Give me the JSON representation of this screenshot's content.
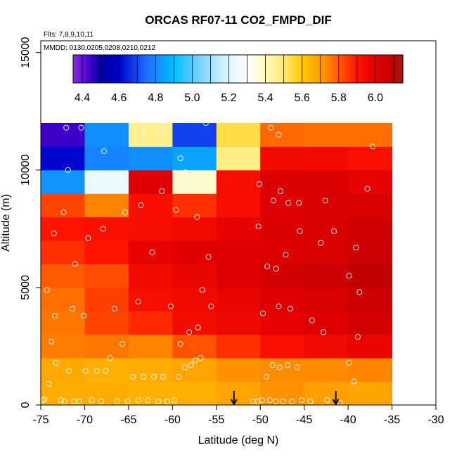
{
  "chart_data": {
    "type": "heatmap",
    "title": "ORCAS RF07-11 CO2_FMPD_DIF",
    "flights_note": "Flts: 7,8,9,10,11",
    "dates_note": "MMDD: 0130,0205,0208,0210,0212",
    "xlabel": "Latitude (deg N)",
    "ylabel": "Altitude (m)",
    "xlim": [
      -75,
      -30
    ],
    "ylim": [
      0,
      15500
    ],
    "x_ticks": [
      -75,
      -70,
      -65,
      -60,
      -55,
      -50,
      -45,
      -40,
      -35,
      -30
    ],
    "x_tick_labels": [
      "-75",
      "-70",
      "-65",
      "-60",
      "-55",
      "-50",
      "-45",
      "-40",
      "-35",
      "-30"
    ],
    "y_ticks": [
      0,
      5000,
      10000,
      15000
    ],
    "y_tick_labels": [
      "0",
      "5000",
      "10000",
      "15000"
    ],
    "colorbar": {
      "min": 4.35,
      "max": 6.15,
      "ticks": [
        4.4,
        4.6,
        4.8,
        5.0,
        5.2,
        5.4,
        5.6,
        5.8,
        6.0
      ],
      "tick_labels": [
        "4.4",
        "4.6",
        "4.8",
        "5.0",
        "5.2",
        "5.4",
        "5.6",
        "5.8",
        "6.0"
      ],
      "divisions": [
        4.35,
        4.4,
        4.5,
        4.6,
        4.7,
        4.8,
        4.9,
        5.0,
        5.1,
        5.2,
        5.3,
        5.4,
        5.5,
        5.6,
        5.7,
        5.8,
        5.9,
        6.0,
        6.1,
        6.15
      ]
    },
    "lat_bins": [
      -75,
      -70,
      -65,
      -60,
      -55,
      -50,
      -45,
      -40,
      -35
    ],
    "alt_bins": [
      0,
      1000,
      2000,
      3000,
      4000,
      5000,
      6000,
      7000,
      8000,
      9000,
      10000,
      11000,
      12000
    ],
    "cell_values_bottom_to_top": [
      [
        5.67,
        5.67,
        5.66,
        5.66,
        5.69,
        5.72,
        5.7,
        5.69
      ],
      [
        5.68,
        5.66,
        5.67,
        5.69,
        5.72,
        5.73,
        5.73,
        5.74
      ],
      [
        5.75,
        5.76,
        5.74,
        5.81,
        5.86,
        5.92,
        5.95,
        5.97
      ],
      [
        5.76,
        5.83,
        5.87,
        5.94,
        5.96,
        5.99,
        6.01,
        6.04
      ],
      [
        5.77,
        5.84,
        5.93,
        5.95,
        5.97,
        6.01,
        6.03,
        6.06
      ],
      [
        5.8,
        5.82,
        5.94,
        5.97,
        6.01,
        6.04,
        6.06,
        6.09
      ],
      [
        5.86,
        5.9,
        5.98,
        6.0,
        6.0,
        6.02,
        6.03,
        6.06
      ],
      [
        5.9,
        5.92,
        5.93,
        5.95,
        5.98,
        6.02,
        6.03,
        6.05
      ],
      [
        5.83,
        5.74,
        5.93,
        5.86,
        5.93,
        6.01,
        6.02,
        6.03
      ],
      [
        4.82,
        5.23,
        6.01,
        5.38,
        5.93,
        6.02,
        6.02,
        5.98
      ],
      [
        4.61,
        4.79,
        4.81,
        4.85,
        5.48,
        5.94,
        5.95,
        5.92
      ],
      [
        4.45,
        4.81,
        5.47,
        4.69,
        5.54,
        5.78,
        5.77,
        5.77
      ]
    ],
    "sample_points": [
      {
        "lat": -74.8,
        "alt": 200
      },
      {
        "lat": -74.6,
        "alt": 250
      },
      {
        "lat": -74.1,
        "alt": 900
      },
      {
        "lat": -73.3,
        "alt": 1800
      },
      {
        "lat": -72.7,
        "alt": 200
      },
      {
        "lat": -72.3,
        "alt": 150
      },
      {
        "lat": -71.8,
        "alt": 1450
      },
      {
        "lat": -71.2,
        "alt": 150
      },
      {
        "lat": -70.6,
        "alt": 150
      },
      {
        "lat": -69.9,
        "alt": 1450
      },
      {
        "lat": -69.2,
        "alt": 200
      },
      {
        "lat": -68.6,
        "alt": 1450
      },
      {
        "lat": -68.1,
        "alt": 150
      },
      {
        "lat": -67.6,
        "alt": 1450
      },
      {
        "lat": -67.1,
        "alt": 2000
      },
      {
        "lat": -66.3,
        "alt": 150
      },
      {
        "lat": -65.7,
        "alt": 2600
      },
      {
        "lat": -65.1,
        "alt": 150
      },
      {
        "lat": -64.5,
        "alt": 1200
      },
      {
        "lat": -63.9,
        "alt": 200
      },
      {
        "lat": -63.3,
        "alt": 1200
      },
      {
        "lat": -62.8,
        "alt": 200
      },
      {
        "lat": -62.1,
        "alt": 1200
      },
      {
        "lat": -61.6,
        "alt": 150
      },
      {
        "lat": -61.1,
        "alt": 1200
      },
      {
        "lat": -60.6,
        "alt": 150
      },
      {
        "lat": -59.8,
        "alt": 200
      },
      {
        "lat": -59.3,
        "alt": 1200
      },
      {
        "lat": -58.6,
        "alt": 1600
      },
      {
        "lat": -57.9,
        "alt": 1700
      },
      {
        "lat": -57.4,
        "alt": 1900
      },
      {
        "lat": -56.8,
        "alt": 2000
      },
      {
        "lat": -50.8,
        "alt": 150
      },
      {
        "lat": -50.3,
        "alt": 150
      },
      {
        "lat": -49.8,
        "alt": 200
      },
      {
        "lat": -49.3,
        "alt": 1200
      },
      {
        "lat": -48.9,
        "alt": 200
      },
      {
        "lat": -48.6,
        "alt": 1700
      },
      {
        "lat": -48.2,
        "alt": 150
      },
      {
        "lat": -47.8,
        "alt": 1600
      },
      {
        "lat": -47.4,
        "alt": 150
      },
      {
        "lat": -46.9,
        "alt": 1700
      },
      {
        "lat": -46.4,
        "alt": 150
      },
      {
        "lat": -45.8,
        "alt": 1600
      },
      {
        "lat": -45.3,
        "alt": 200
      },
      {
        "lat": -44.3,
        "alt": 150
      },
      {
        "lat": -42.4,
        "alt": 200
      },
      {
        "lat": -40.9,
        "alt": 100
      },
      {
        "lat": -39.9,
        "alt": 1800
      },
      {
        "lat": -39.3,
        "alt": 1000
      },
      {
        "lat": -38.7,
        "alt": 4800
      },
      {
        "lat": -38.9,
        "alt": 2900
      },
      {
        "lat": -73.8,
        "alt": 2700
      },
      {
        "lat": -74.3,
        "alt": 4900
      },
      {
        "lat": -73.4,
        "alt": 3800
      },
      {
        "lat": -71.4,
        "alt": 4100
      },
      {
        "lat": -70.1,
        "alt": 3800
      },
      {
        "lat": -66.6,
        "alt": 4100
      },
      {
        "lat": -63.9,
        "alt": 4400
      },
      {
        "lat": -60.2,
        "alt": 4200
      },
      {
        "lat": -59.1,
        "alt": 2600
      },
      {
        "lat": -58.1,
        "alt": 3100
      },
      {
        "lat": -57.1,
        "alt": 3300
      },
      {
        "lat": -56.6,
        "alt": 4900
      },
      {
        "lat": -55.6,
        "alt": 4200
      },
      {
        "lat": -49.7,
        "alt": 3900
      },
      {
        "lat": -47.9,
        "alt": 4200
      },
      {
        "lat": -46.6,
        "alt": 4100
      },
      {
        "lat": -44.1,
        "alt": 3600
      },
      {
        "lat": -42.8,
        "alt": 3100
      },
      {
        "lat": -71.1,
        "alt": 6000
      },
      {
        "lat": -73.5,
        "alt": 7300
      },
      {
        "lat": -69.6,
        "alt": 7100
      },
      {
        "lat": -67.9,
        "alt": 7500
      },
      {
        "lat": -65.4,
        "alt": 8200
      },
      {
        "lat": -62.3,
        "alt": 6500
      },
      {
        "lat": -59.6,
        "alt": 8300
      },
      {
        "lat": -57.2,
        "alt": 8000
      },
      {
        "lat": -55.9,
        "alt": 6300
      },
      {
        "lat": -50.2,
        "alt": 7600
      },
      {
        "lat": -49.2,
        "alt": 5900
      },
      {
        "lat": -48.2,
        "alt": 5800
      },
      {
        "lat": -47.1,
        "alt": 6400
      },
      {
        "lat": -45.5,
        "alt": 7400
      },
      {
        "lat": -43.1,
        "alt": 6900
      },
      {
        "lat": -41.6,
        "alt": 7400
      },
      {
        "lat": -39.9,
        "alt": 5500
      },
      {
        "lat": -39.1,
        "alt": 6700
      },
      {
        "lat": -72.4,
        "alt": 8200
      },
      {
        "lat": -68.6,
        "alt": 9700
      },
      {
        "lat": -63.6,
        "alt": 8500
      },
      {
        "lat": -61.2,
        "alt": 9100
      },
      {
        "lat": -58.4,
        "alt": 9300
      },
      {
        "lat": -50.1,
        "alt": 9400
      },
      {
        "lat": -48.5,
        "alt": 8700
      },
      {
        "lat": -47.7,
        "alt": 9100
      },
      {
        "lat": -46.8,
        "alt": 8600
      },
      {
        "lat": -45.6,
        "alt": 8600
      },
      {
        "lat": -42.6,
        "alt": 8700
      },
      {
        "lat": -37.8,
        "alt": 9200
      },
      {
        "lat": -72.1,
        "alt": 11800
      },
      {
        "lat": -70.4,
        "alt": 11800
      },
      {
        "lat": -67.8,
        "alt": 10800
      },
      {
        "lat": -63.3,
        "alt": 11600
      },
      {
        "lat": -61.2,
        "alt": 11700
      },
      {
        "lat": -59.1,
        "alt": 10500
      },
      {
        "lat": -56.2,
        "alt": 12000
      },
      {
        "lat": -48.8,
        "alt": 11800
      },
      {
        "lat": -47.9,
        "alt": 11500
      },
      {
        "lat": -37.2,
        "alt": 11000
      },
      {
        "lat": -71.9,
        "alt": 10000
      },
      {
        "lat": -58.5,
        "alt": 9900
      }
    ],
    "arrows_lat": [
      -53,
      -41.4
    ]
  }
}
